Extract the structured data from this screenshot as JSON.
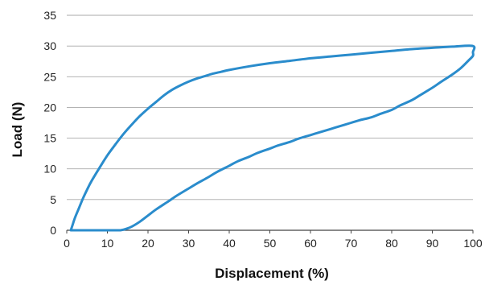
{
  "chart_data": {
    "type": "line",
    "title": "",
    "xlabel": "Displacement (%)",
    "ylabel": "Load (N)",
    "xlim": [
      0,
      100
    ],
    "ylim": [
      0,
      35
    ],
    "xticks": [
      0,
      10,
      20,
      30,
      40,
      50,
      60,
      70,
      80,
      90,
      100
    ],
    "yticks": [
      0,
      5,
      10,
      15,
      20,
      25,
      30,
      35
    ],
    "grid": "horizontal",
    "legend": "none",
    "line_color": "#2a8ccc",
    "series": [
      {
        "name": "",
        "x": [
          1,
          1.5,
          2,
          3,
          4,
          5,
          6,
          8,
          10,
          12,
          14,
          16,
          18,
          20,
          22,
          24,
          26,
          28,
          30,
          32,
          34,
          36,
          38,
          40,
          45,
          50,
          55,
          60,
          65,
          70,
          75,
          80,
          85,
          90,
          95,
          100,
          100,
          100,
          99,
          97,
          95,
          92,
          90,
          87,
          85,
          82,
          80,
          77,
          75,
          72,
          70,
          67,
          65,
          62,
          60,
          57,
          55,
          52,
          50,
          47,
          45,
          42,
          40,
          37,
          35,
          32,
          30,
          27,
          25,
          22,
          20,
          18,
          16,
          14,
          13,
          12,
          10,
          8,
          6,
          4,
          2,
          1
        ],
        "y": [
          0,
          1,
          2,
          3.6,
          5.2,
          6.6,
          7.9,
          10.1,
          12.2,
          14,
          15.7,
          17.2,
          18.6,
          19.8,
          20.9,
          22,
          22.9,
          23.6,
          24.2,
          24.7,
          25.1,
          25.5,
          25.8,
          26.1,
          26.7,
          27.2,
          27.6,
          28,
          28.3,
          28.6,
          28.9,
          29.2,
          29.5,
          29.7,
          29.9,
          30,
          29,
          28.4,
          27.7,
          26.4,
          25.4,
          24.1,
          23.2,
          22,
          21.2,
          20.3,
          19.6,
          18.9,
          18.4,
          17.9,
          17.5,
          16.9,
          16.5,
          15.9,
          15.5,
          14.9,
          14.4,
          13.8,
          13.3,
          12.6,
          12,
          11.2,
          10.5,
          9.5,
          8.7,
          7.6,
          6.8,
          5.6,
          4.7,
          3.4,
          2.4,
          1.4,
          0.6,
          0.1,
          0,
          0,
          0,
          0,
          0,
          0,
          0,
          0
        ]
      }
    ]
  }
}
